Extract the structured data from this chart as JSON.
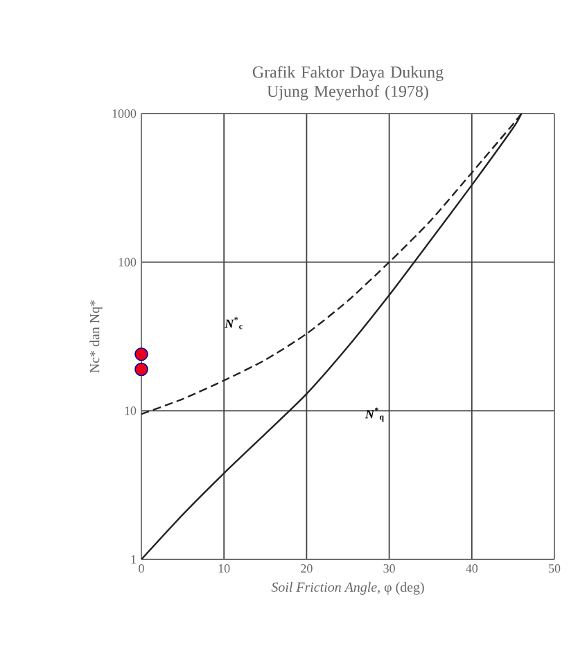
{
  "chart_data": {
    "type": "line",
    "title": "Grafik Faktor Daya Dukung Ujung Meyerhof (1978)",
    "xlabel": "*Soil Friction Angle,* φ (deg)",
    "ylabel": "Nc* dan Nq*",
    "xlim": [
      0,
      50
    ],
    "ylim": [
      1,
      1000
    ],
    "xticks": [
      0,
      10,
      20,
      30,
      40,
      50
    ],
    "yticks": [
      1,
      10,
      100,
      1000
    ],
    "log": "y",
    "grid": true,
    "series": [
      {
        "line_style": "dashed",
        "color": "#222222",
        "x": [
          0,
          5,
          10,
          15,
          20,
          25,
          30,
          35,
          40,
          45,
          46
        ],
        "values": [
          9.5,
          12,
          16,
          22,
          33,
          55,
          100,
          190,
          400,
          850,
          1000
        ]
      },
      {
        "line_style": "solid",
        "color": "#222222",
        "x": [
          0,
          5,
          10,
          15,
          20,
          25,
          30,
          35,
          40,
          45,
          46
        ],
        "values": [
          1,
          2,
          3.8,
          7,
          13,
          27,
          60,
          140,
          330,
          800,
          1000
        ]
      },
      {
        "type": "scatter",
        "marker": "circle",
        "color": "#e8001c",
        "x": [
          0,
          0
        ],
        "values": [
          19,
          24
        ]
      }
    ],
    "annotations": [
      "*N*$^{*}$$_{c}$",
      "*N*$^{*}$$_{q}$"
    ]
  }
}
